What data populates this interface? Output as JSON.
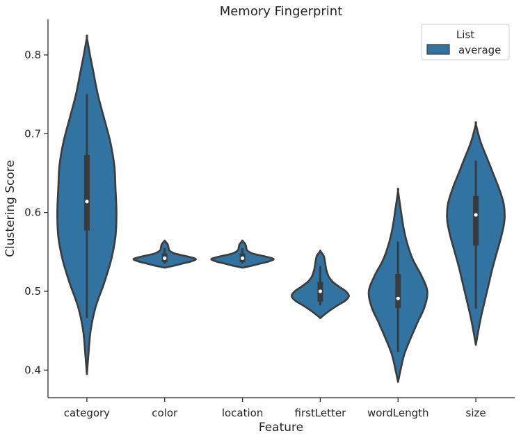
{
  "chart_data": {
    "type": "violin",
    "title": "Memory Fingerprint",
    "xlabel": "Feature",
    "ylabel": "Clustering Score",
    "ylim": [
      0.365,
      0.845
    ],
    "yticks": [
      "0.4",
      "0.5",
      "0.6",
      "0.7",
      "0.8"
    ],
    "grid": false,
    "legend": {
      "title": "List",
      "entries": [
        "average"
      ],
      "position": "top-right"
    },
    "categories": [
      "category",
      "color",
      "location",
      "firstLetter",
      "wordLength",
      "size"
    ],
    "series": [
      {
        "name": "average",
        "color": "#3274a1",
        "stats": [
          {
            "min": 0.466,
            "q1": 0.577,
            "median": 0.614,
            "q3": 0.673,
            "max": 0.75,
            "violin_min": 0.395,
            "violin_max": 0.822,
            "density": [
              [
                0.395,
                0.0
              ],
              [
                0.42,
                0.05
              ],
              [
                0.45,
                0.12
              ],
              [
                0.48,
                0.28
              ],
              [
                0.51,
                0.55
              ],
              [
                0.54,
                0.78
              ],
              [
                0.57,
                0.92
              ],
              [
                0.6,
                0.95
              ],
              [
                0.63,
                0.92
              ],
              [
                0.66,
                0.88
              ],
              [
                0.69,
                0.75
              ],
              [
                0.72,
                0.55
              ],
              [
                0.75,
                0.35
              ],
              [
                0.78,
                0.2
              ],
              [
                0.8,
                0.1
              ],
              [
                0.822,
                0.0
              ]
            ]
          },
          {
            "min": 0.535,
            "q1": 0.537,
            "median": 0.542,
            "q3": 0.548,
            "max": 0.555,
            "violin_min": 0.53,
            "violin_max": 0.564,
            "density": [
              [
                0.53,
                0.0
              ],
              [
                0.532,
                0.25
              ],
              [
                0.535,
                0.55
              ],
              [
                0.538,
                0.85
              ],
              [
                0.541,
                1.0
              ],
              [
                0.544,
                0.75
              ],
              [
                0.548,
                0.32
              ],
              [
                0.552,
                0.15
              ],
              [
                0.556,
                0.12
              ],
              [
                0.56,
                0.09
              ],
              [
                0.564,
                0.0
              ]
            ]
          },
          {
            "min": 0.535,
            "q1": 0.537,
            "median": 0.542,
            "q3": 0.548,
            "max": 0.555,
            "violin_min": 0.53,
            "violin_max": 0.564,
            "density": [
              [
                0.53,
                0.0
              ],
              [
                0.532,
                0.25
              ],
              [
                0.535,
                0.55
              ],
              [
                0.538,
                0.85
              ],
              [
                0.541,
                1.0
              ],
              [
                0.544,
                0.75
              ],
              [
                0.548,
                0.32
              ],
              [
                0.552,
                0.15
              ],
              [
                0.556,
                0.12
              ],
              [
                0.56,
                0.09
              ],
              [
                0.564,
                0.0
              ]
            ]
          },
          {
            "min": 0.482,
            "q1": 0.487,
            "median": 0.5,
            "q3": 0.512,
            "max": 0.532,
            "violin_min": 0.466,
            "violin_max": 0.551,
            "density": [
              [
                0.466,
                0.0
              ],
              [
                0.47,
                0.12
              ],
              [
                0.476,
                0.32
              ],
              [
                0.482,
                0.55
              ],
              [
                0.488,
                0.8
              ],
              [
                0.494,
                0.92
              ],
              [
                0.5,
                0.82
              ],
              [
                0.506,
                0.6
              ],
              [
                0.512,
                0.4
              ],
              [
                0.518,
                0.28
              ],
              [
                0.524,
                0.22
              ],
              [
                0.53,
                0.18
              ],
              [
                0.538,
                0.15
              ],
              [
                0.545,
                0.11
              ],
              [
                0.551,
                0.0
              ]
            ]
          },
          {
            "min": 0.423,
            "q1": 0.479,
            "median": 0.491,
            "q3": 0.522,
            "max": 0.563,
            "violin_min": 0.385,
            "violin_max": 0.627,
            "density": [
              [
                0.385,
                0.0
              ],
              [
                0.4,
                0.08
              ],
              [
                0.42,
                0.2
              ],
              [
                0.44,
                0.4
              ],
              [
                0.46,
                0.62
              ],
              [
                0.48,
                0.85
              ],
              [
                0.5,
                0.94
              ],
              [
                0.52,
                0.75
              ],
              [
                0.54,
                0.48
              ],
              [
                0.56,
                0.3
              ],
              [
                0.58,
                0.18
              ],
              [
                0.6,
                0.1
              ],
              [
                0.627,
                0.0
              ]
            ]
          },
          {
            "min": 0.478,
            "q1": 0.558,
            "median": 0.597,
            "q3": 0.621,
            "max": 0.666,
            "violin_min": 0.432,
            "violin_max": 0.712,
            "density": [
              [
                0.432,
                0.0
              ],
              [
                0.45,
                0.08
              ],
              [
                0.47,
                0.18
              ],
              [
                0.49,
                0.3
              ],
              [
                0.51,
                0.42
              ],
              [
                0.53,
                0.54
              ],
              [
                0.55,
                0.68
              ],
              [
                0.57,
                0.82
              ],
              [
                0.59,
                0.92
              ],
              [
                0.61,
                0.9
              ],
              [
                0.63,
                0.75
              ],
              [
                0.65,
                0.55
              ],
              [
                0.67,
                0.35
              ],
              [
                0.69,
                0.15
              ],
              [
                0.712,
                0.0
              ]
            ]
          }
        ]
      }
    ]
  }
}
